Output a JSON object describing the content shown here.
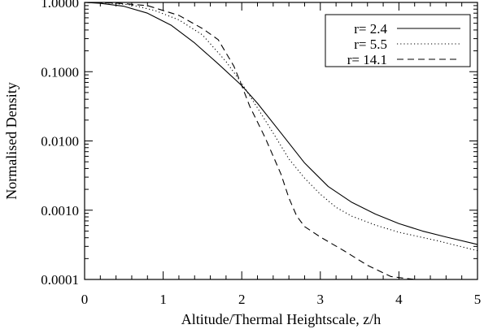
{
  "chart_data": {
    "type": "line",
    "title": "",
    "xlabel": "Altitude/Thermal Heightscale, z/h",
    "ylabel": "Normalised Density",
    "xlim": [
      0,
      5
    ],
    "ylim": [
      0.0001,
      1.0
    ],
    "yscale": "log",
    "grid": false,
    "legend_position": "top-right",
    "x_ticks": [
      "0",
      "1",
      "2",
      "3",
      "4",
      "5"
    ],
    "y_ticks": [
      "1.0000",
      "0.1000",
      "0.0100",
      "0.0010",
      "0.0001"
    ],
    "series": [
      {
        "name": "r=  2.4",
        "style": "solid",
        "color": "#000000",
        "x": [
          0,
          0.2,
          0.5,
          0.8,
          1.1,
          1.4,
          1.7,
          2.0,
          2.2,
          2.5,
          2.8,
          3.1,
          3.4,
          3.7,
          4.0,
          4.3,
          4.6,
          5.0
        ],
        "y": [
          1.0,
          0.97,
          0.88,
          0.7,
          0.47,
          0.26,
          0.13,
          0.063,
          0.035,
          0.013,
          0.0048,
          0.0022,
          0.0013,
          0.00088,
          0.00064,
          0.0005,
          0.00041,
          0.00032
        ]
      },
      {
        "name": "r=  5.5",
        "style": "dotted",
        "color": "#000000",
        "x": [
          0,
          0.3,
          0.6,
          0.9,
          1.2,
          1.5,
          1.8,
          2.0,
          2.2,
          2.4,
          2.6,
          2.8,
          3.0,
          3.2,
          3.4,
          3.7,
          4.0,
          4.5,
          5.0
        ],
        "y": [
          1.0,
          0.98,
          0.92,
          0.76,
          0.56,
          0.34,
          0.14,
          0.068,
          0.03,
          0.013,
          0.0055,
          0.0029,
          0.0017,
          0.0011,
          0.00082,
          0.00061,
          0.00048,
          0.00036,
          0.00026
        ]
      },
      {
        "name": "r= 14.1",
        "style": "dashed",
        "color": "#000000",
        "x": [
          0,
          0.4,
          0.8,
          1.2,
          1.5,
          1.7,
          1.9,
          2.0,
          2.1,
          2.3,
          2.5,
          2.6,
          2.7,
          2.8,
          3.0,
          3.3,
          3.6,
          3.9,
          4.2
        ],
        "y": [
          1.0,
          0.98,
          0.9,
          0.65,
          0.42,
          0.29,
          0.12,
          0.063,
          0.032,
          0.011,
          0.0033,
          0.0015,
          0.00082,
          0.00058,
          0.00041,
          0.00026,
          0.00016,
          0.00011,
          0.0001
        ]
      }
    ]
  }
}
